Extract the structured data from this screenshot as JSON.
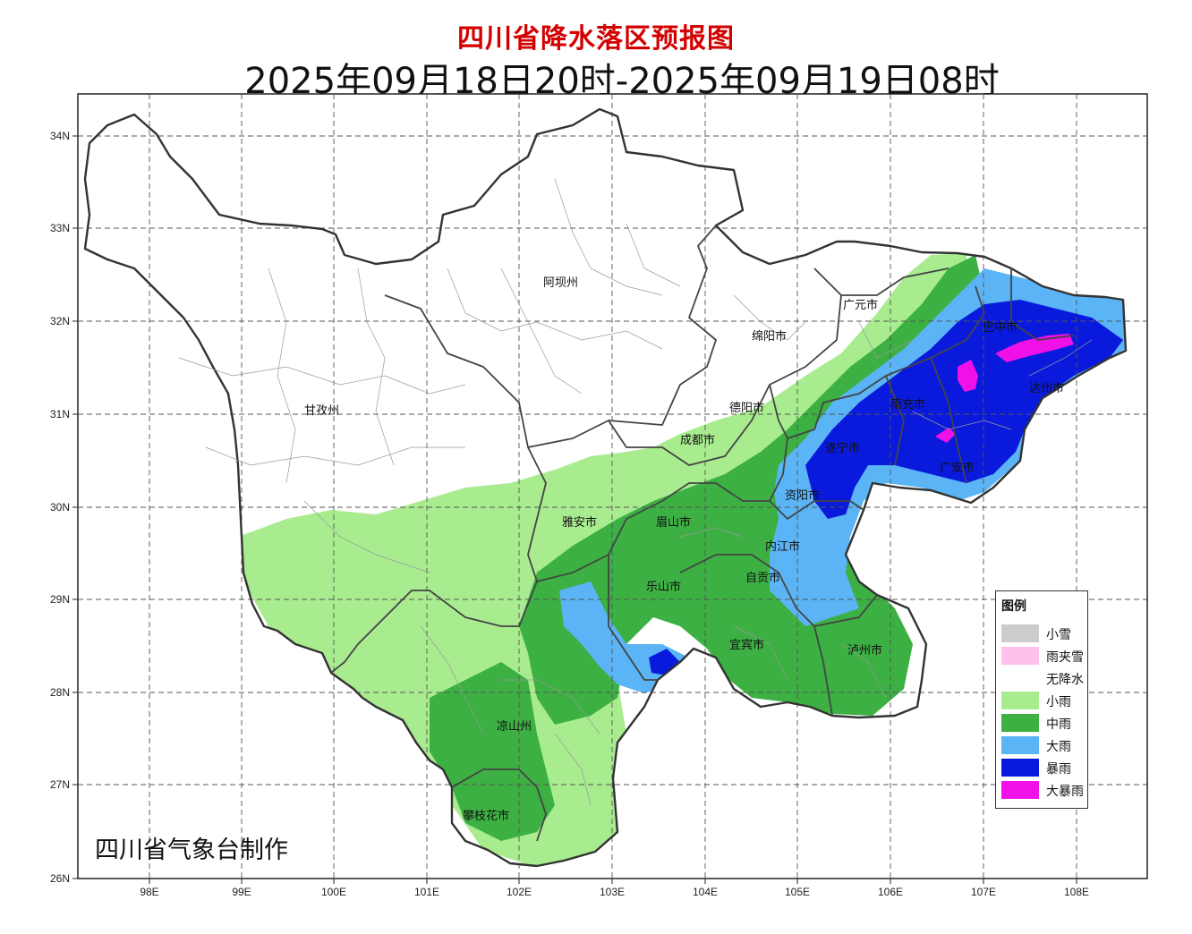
{
  "header": {
    "title": "四川省降水落区预报图",
    "period": "2025年09月18日20时-2025年09月19日08时"
  },
  "axes": {
    "lon_labels": [
      "98E",
      "99E",
      "100E",
      "101E",
      "102E",
      "103E",
      "104E",
      "105E",
      "106E",
      "107E",
      "108E"
    ],
    "lat_labels": [
      "34N",
      "33N",
      "32N",
      "31N",
      "30N",
      "29N",
      "28N",
      "27N",
      "26N"
    ]
  },
  "cities": [
    {
      "name": "阿坝州"
    },
    {
      "name": "甘孜州"
    },
    {
      "name": "广元市"
    },
    {
      "name": "绵阳市"
    },
    {
      "name": "德阳市"
    },
    {
      "name": "成都市"
    },
    {
      "name": "巴中市"
    },
    {
      "name": "达州市"
    },
    {
      "name": "南充市"
    },
    {
      "name": "遂宁市"
    },
    {
      "name": "广安市"
    },
    {
      "name": "资阳市"
    },
    {
      "name": "雅安市"
    },
    {
      "name": "眉山市"
    },
    {
      "name": "内江市"
    },
    {
      "name": "乐山市"
    },
    {
      "name": "自贡市"
    },
    {
      "name": "宜宾市"
    },
    {
      "name": "泸州市"
    },
    {
      "name": "凉山州"
    },
    {
      "name": "攀枝花市"
    }
  ],
  "legend": {
    "title": "图例",
    "items": [
      {
        "label": "小雪",
        "color": "#cccccc"
      },
      {
        "label": "雨夹雪",
        "color": "#ffc0ec"
      },
      {
        "label": "无降水",
        "color": "#ffffff"
      },
      {
        "label": "小雨",
        "color": "#a8ec8f"
      },
      {
        "label": "中雨",
        "color": "#3cb043"
      },
      {
        "label": "大雨",
        "color": "#5ab4f5"
      },
      {
        "label": "暴雨",
        "color": "#0a1adc"
      },
      {
        "label": "大暴雨",
        "color": "#f010e8"
      }
    ]
  },
  "credit": "四川省气象台制作"
}
